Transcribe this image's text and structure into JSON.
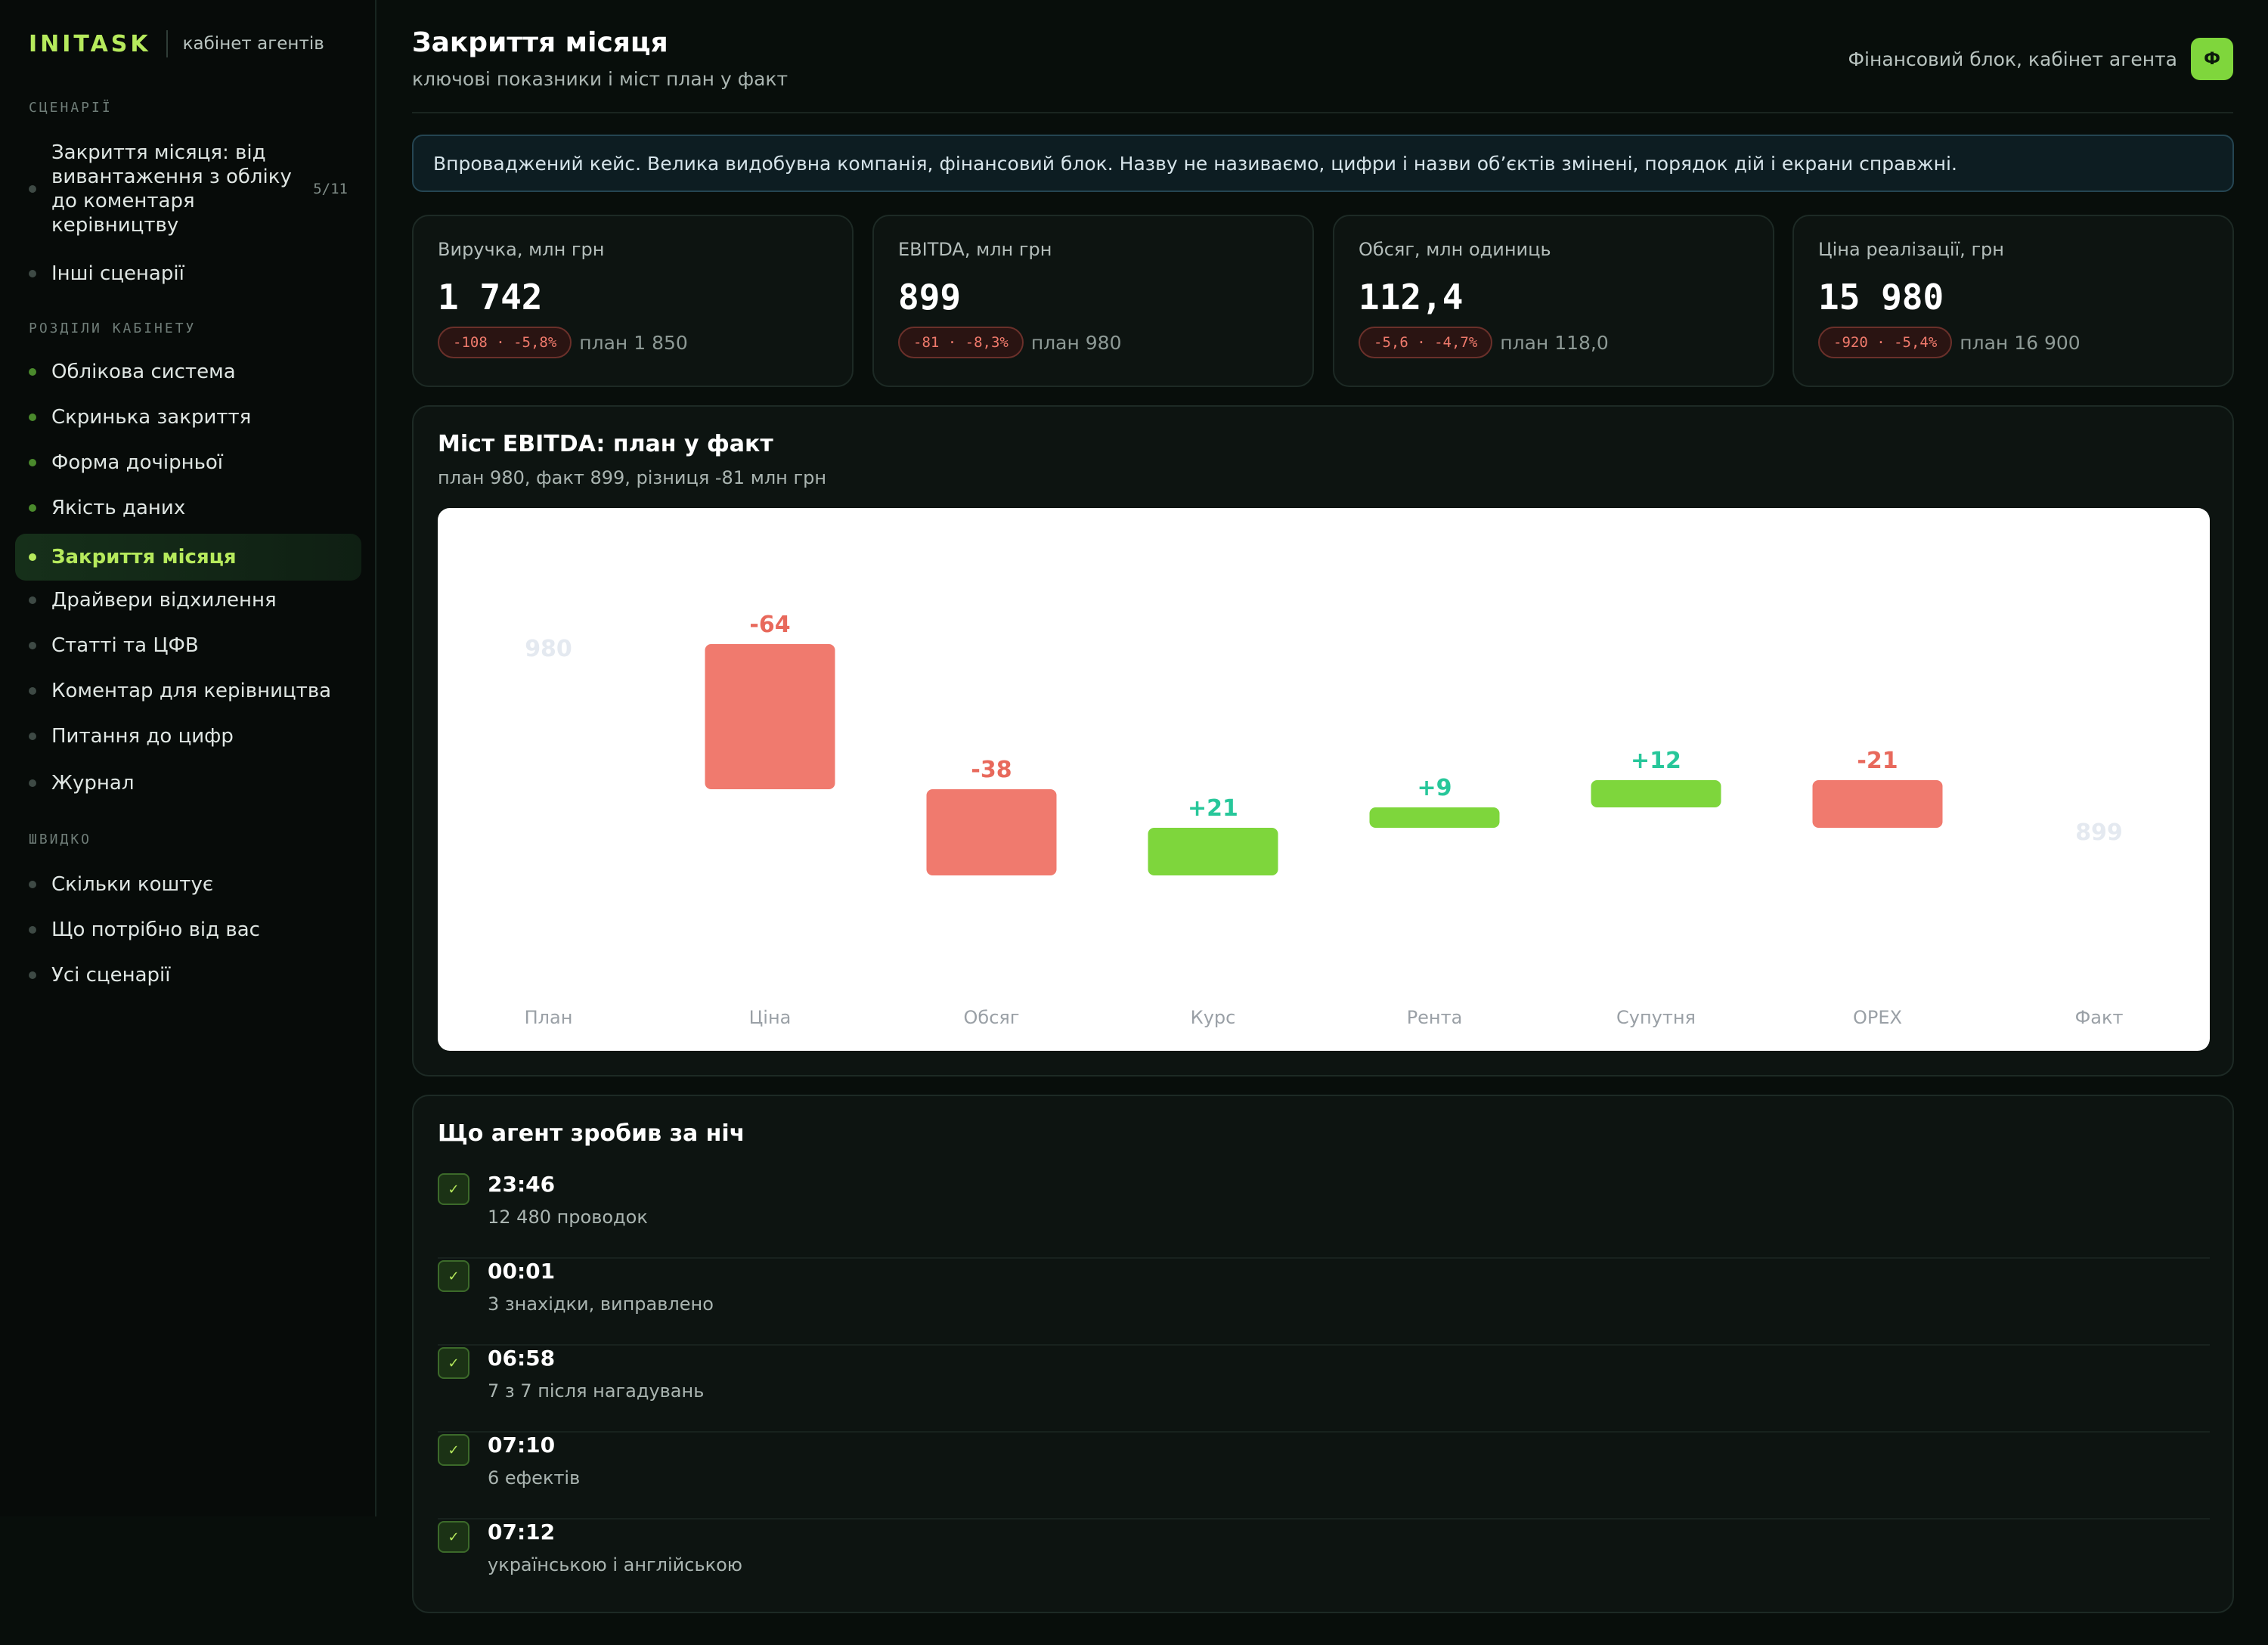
{
  "brand": {
    "logo": "INITASK",
    "subtitle": "кабінет агентів"
  },
  "sidebar": {
    "scenarios_label": "СЦЕНАРІЇ",
    "scenarios": [
      {
        "label": "Закриття місяця: від вивантаження з обліку до коментаря керівництву",
        "count": "5/11"
      },
      {
        "label": "Інші сценарії"
      }
    ],
    "sections_label": "РОЗДІЛИ КАБІНЕТУ",
    "sections": [
      {
        "label": "Облікова система"
      },
      {
        "label": "Скринька закриття"
      },
      {
        "label": "Форма дочірньої"
      },
      {
        "label": "Якість даних"
      },
      {
        "label": "Закриття місяця"
      },
      {
        "label": "Драйвери відхилення"
      },
      {
        "label": "Статті та ЦФВ"
      },
      {
        "label": "Коментар для керівництва"
      },
      {
        "label": "Питання до цифр"
      },
      {
        "label": "Журнал"
      }
    ],
    "quick_label": "ШВИДКО",
    "quick": [
      {
        "label": "Скільки коштує"
      },
      {
        "label": "Що потрібно від вас"
      },
      {
        "label": "Усі сценарії"
      }
    ]
  },
  "header": {
    "title": "Закриття місяця",
    "subtitle": "ключові показники і міст план у факт",
    "user": "Фінансовий блок, кабінет агента",
    "avatar": "Ф"
  },
  "notice": "Впроваджений кейс. Велика видобувна компанія, фінансовий блок. Назву не називаємо, цифри і назви об’єктів змінені, порядок дій і екрани справжні.",
  "kpis": [
    {
      "label": "Виручка, млн грн",
      "value": "1 742",
      "delta": "-108 · -5,8%",
      "plan": "план 1 850"
    },
    {
      "label": "EBITDA, млн грн",
      "value": "899",
      "delta": "-81 · -8,3%",
      "plan": "план 980"
    },
    {
      "label": "Обсяг, млн одиниць",
      "value": "112,4",
      "delta": "-5,6 · -4,7%",
      "plan": "план 118,0"
    },
    {
      "label": "Ціна реалізації, грн",
      "value": "15 980",
      "delta": "-920 · -5,4%",
      "plan": "план 16 900"
    }
  ],
  "bridge": {
    "title": "Міст EBITDA: план у факт",
    "subtitle": "план 980, факт 899, різниця -81 млн грн"
  },
  "chart_data": {
    "type": "waterfall",
    "title": "Міст EBITDA: план у факт",
    "categories": [
      "План",
      "Ціна",
      "Обсяг",
      "Курс",
      "Рента",
      "Супутня",
      "OPEX",
      "Факт"
    ],
    "values": [
      980,
      -64,
      -38,
      21,
      9,
      12,
      -21,
      899
    ],
    "labels": [
      "980",
      "-64",
      "-38",
      "+21",
      "+9",
      "+12",
      "-21",
      "899"
    ],
    "kinds": [
      "total",
      "delta",
      "delta",
      "delta",
      "delta",
      "delta",
      "delta",
      "total"
    ],
    "colors": {
      "negative": "#f07a6e",
      "positive": "#7ed63c",
      "neg_label": "#e8695c",
      "pos_label": "#27c79a",
      "total_label": "#e4e9f0",
      "axis_label": "#9aa0a6"
    }
  },
  "log": {
    "title": "Що агент зробив за ніч",
    "items": [
      {
        "time": "23:46",
        "desc": "12 480 проводок"
      },
      {
        "time": "00:01",
        "desc": "3 знахідки, виправлено"
      },
      {
        "time": "06:58",
        "desc": "7 з 7 після нагадувань"
      },
      {
        "time": "07:10",
        "desc": "6 ефектів"
      },
      {
        "time": "07:12",
        "desc": "українською і англійською"
      }
    ],
    "check_glyph": "✓"
  }
}
